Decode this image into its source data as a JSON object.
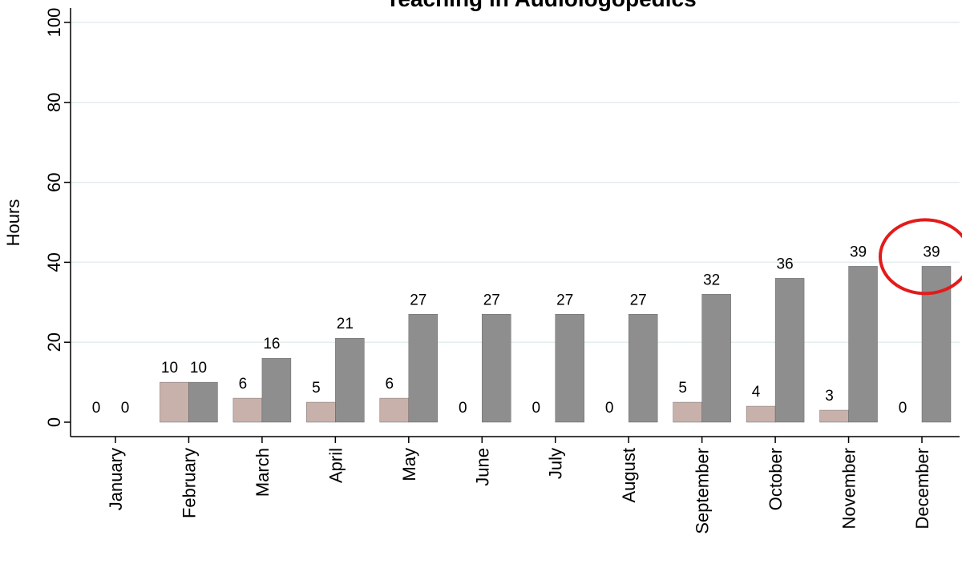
{
  "chart_data": {
    "type": "bar",
    "title": "Teaching in Audiologopedics",
    "xlabel": "",
    "ylabel": "Hours",
    "ylim": [
      0,
      100
    ],
    "yticks": [
      0,
      20,
      40,
      60,
      80,
      100
    ],
    "grid": true,
    "legend": "none",
    "categories": [
      "January",
      "February",
      "March",
      "April",
      "May",
      "June",
      "July",
      "August",
      "September",
      "October",
      "November",
      "December"
    ],
    "series": [
      {
        "values": [
          0,
          10,
          6,
          5,
          6,
          0,
          0,
          0,
          5,
          4,
          3,
          0
        ],
        "color": "#c9b1ab"
      },
      {
        "values": [
          0,
          10,
          16,
          21,
          27,
          27,
          27,
          27,
          32,
          36,
          39,
          39
        ],
        "color": "#8e8e8e"
      }
    ],
    "highlight": {
      "category": "December",
      "color": "#e31b1b"
    }
  }
}
